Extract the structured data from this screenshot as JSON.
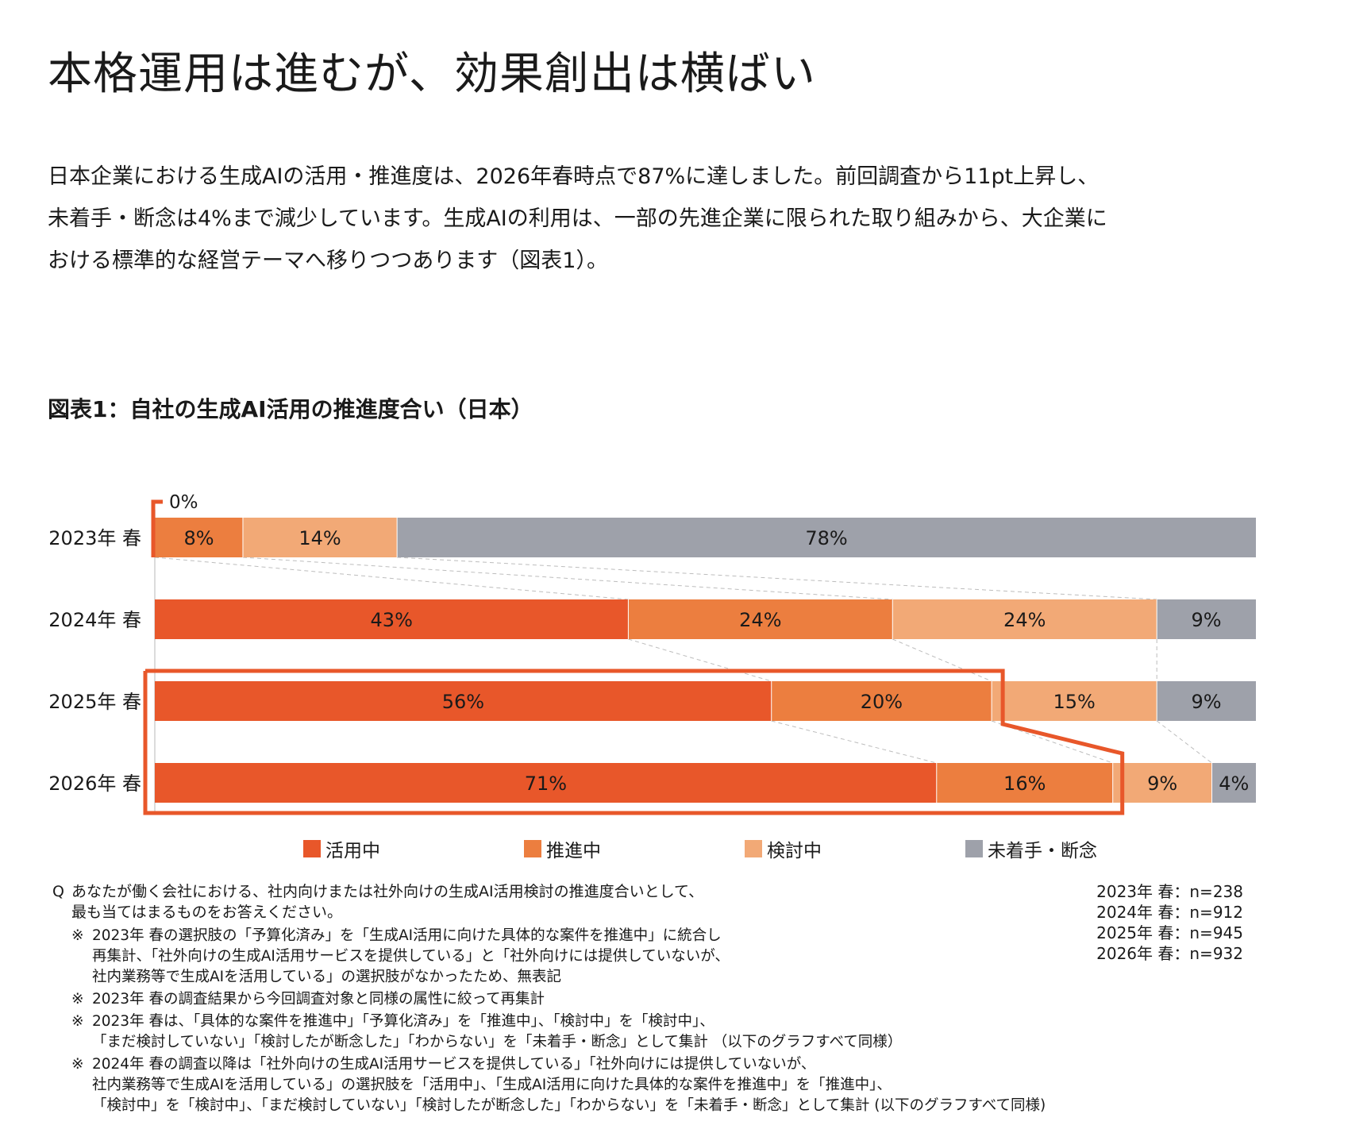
{
  "heading": "本格運用は進むが、効果創出は横ばい",
  "lead": "日本企業における生成AIの活用・推進度は、2026年春時点で87%に達しました。前回調査から11pt上昇し、未着手・断念は4%まで減少しています。生成AIの利用は、一部の先進企業に限られた取り組みから、大企業における標準的な経営テーマへ移りつつあります（図表1）。",
  "figure_title": "図表1：自社の生成AI活用の推進度合い（日本）",
  "chart_data": {
    "type": "bar",
    "orientation": "horizontal",
    "stacked": true,
    "categories": [
      "2023年 春",
      "2024年 春",
      "2025年 春",
      "2026年 春"
    ],
    "series": [
      {
        "name": "活用中",
        "values": [
          0,
          43,
          56,
          71
        ],
        "color": "#E8572A"
      },
      {
        "name": "推進中",
        "values": [
          8,
          24,
          20,
          16
        ],
        "color": "#EC7E3F"
      },
      {
        "name": "検討中",
        "values": [
          14,
          24,
          15,
          9
        ],
        "color": "#F2A976"
      },
      {
        "name": "未着手・断念",
        "values": [
          78,
          9,
          9,
          4
        ],
        "color": "#9EA1AA"
      }
    ],
    "xlim": [
      0,
      100
    ],
    "legend_position": "bottom",
    "grid": false,
    "highlight_label": "0%",
    "highlight_color": "#E8572A"
  },
  "legend": [
    {
      "label": "活用中",
      "color": "#E8572A"
    },
    {
      "label": "推進中",
      "color": "#EC7E3F"
    },
    {
      "label": "検討中",
      "color": "#F2A976"
    },
    {
      "label": "未着手・断念",
      "color": "#9EA1AA"
    }
  ],
  "question": {
    "mark": "Q",
    "lines": [
      "あなたが働く会社における、社内向けまたは社外向けの生成AI活用検討の推進度合いとして、",
      "最も当てはまるものをお答えください。"
    ]
  },
  "notes": [
    {
      "mark": "※",
      "lines": [
        "2023年 春の選択肢の「予算化済み」を「生成AI活用に向けた具体的な案件を推進中」に統合し",
        "再集計、「社外向けの生成AI活用サービスを提供している」と「社外向けには提供していないが、",
        "社内業務等で生成AIを活用している」の選択肢がなかったため、無表記"
      ]
    },
    {
      "mark": "※",
      "lines": [
        "2023年 春の調査結果から今回調査対象と同様の属性に絞って再集計"
      ]
    },
    {
      "mark": "※",
      "lines": [
        "2023年 春は、「具体的な案件を推進中」「予算化済み」を「推進中」、「検討中」を「検討中」、",
        "「まだ検討していない」「検討したが断念した」「わからない」を「未着手・断念」として集計 （以下のグラフすべて同様）"
      ]
    },
    {
      "mark": "※",
      "lines": [
        "2024年 春の調査以降は「社外向けの生成AI活用サービスを提供している」「社外向けには提供していないが、",
        "社内業務等で生成AIを活用している」の選択肢を「活用中」、「生成AI活用に向けた具体的な案件を推進中」を「推進中」、",
        "「検討中」を「検討中」、「まだ検討していない」「検討したが断念した」「わからない」を「未着手・断念」として集計 (以下のグラフすべて同様)"
      ]
    }
  ],
  "samples": [
    "2023年 春：n=238",
    "2024年 春：n=912",
    "2025年 春：n=945",
    "2026年 春：n=932"
  ]
}
